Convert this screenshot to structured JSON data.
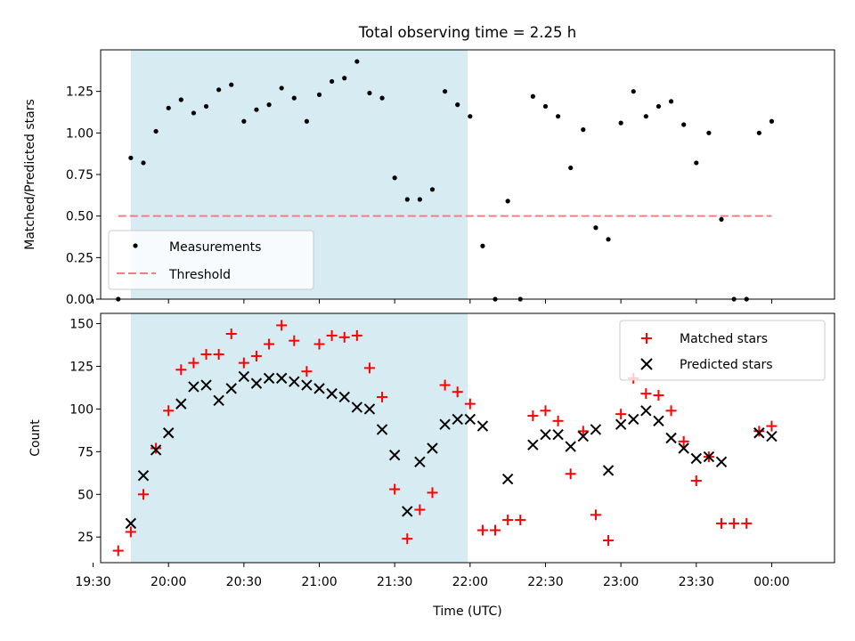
{
  "chart_data": [
    {
      "type": "scatter",
      "title": "Total observing time = 2.25 h",
      "xlabel": "",
      "ylabel": "Matched/Predicted stars",
      "ylim": [
        0,
        1.5
      ],
      "xlim": [
        "19:33",
        "00:25"
      ],
      "x_ticks": [
        "19:30",
        "20:00",
        "20:30",
        "21:00",
        "21:30",
        "22:00",
        "22:30",
        "23:00",
        "23:30",
        "00:00"
      ],
      "y_ticks": [
        "0.00",
        "0.25",
        "0.50",
        "0.75",
        "1.00",
        "1.25"
      ],
      "shaded_interval": [
        "19:45",
        "21:59"
      ],
      "legend_position": "lower left",
      "grid": false,
      "series": [
        {
          "name": "Measurements",
          "marker": "dot",
          "color": "#000000",
          "x": [
            "19:40",
            "19:45",
            "19:50",
            "19:55",
            "20:00",
            "20:05",
            "20:10",
            "20:15",
            "20:20",
            "20:25",
            "20:30",
            "20:35",
            "20:40",
            "20:45",
            "20:50",
            "20:55",
            "21:00",
            "21:05",
            "21:10",
            "21:15",
            "21:20",
            "21:25",
            "21:30",
            "21:35",
            "21:40",
            "21:45",
            "21:50",
            "21:55",
            "22:00",
            "22:05",
            "22:10",
            "22:15",
            "22:20",
            "22:25",
            "22:30",
            "22:35",
            "22:40",
            "22:45",
            "22:50",
            "22:55",
            "23:00",
            "23:05",
            "23:10",
            "23:15",
            "23:20",
            "23:25",
            "23:30",
            "23:35",
            "23:40",
            "23:45",
            "23:50",
            "23:55",
            "00:00"
          ],
          "y": [
            0.0,
            0.85,
            0.82,
            1.01,
            1.15,
            1.2,
            1.12,
            1.16,
            1.26,
            1.29,
            1.07,
            1.14,
            1.17,
            1.27,
            1.21,
            1.07,
            1.23,
            1.31,
            1.33,
            1.43,
            1.24,
            1.21,
            0.73,
            0.6,
            0.6,
            0.66,
            1.25,
            1.17,
            1.1,
            0.32,
            0.0,
            0.59,
            0.0,
            1.22,
            1.16,
            1.1,
            0.79,
            1.02,
            0.43,
            0.36,
            1.06,
            1.25,
            1.1,
            1.16,
            1.19,
            1.05,
            0.82,
            1.0,
            0.48,
            0.0,
            0.0,
            1.0,
            1.07
          ]
        },
        {
          "name": "Threshold",
          "style": "dashed-line",
          "color": "#f08080",
          "x": [
            "19:40",
            "00:00"
          ],
          "y": [
            0.5,
            0.5
          ]
        }
      ]
    },
    {
      "type": "scatter",
      "title": "",
      "xlabel": "Time (UTC)",
      "ylabel": "Count",
      "ylim": [
        10,
        156
      ],
      "xlim": [
        "19:33",
        "00:25"
      ],
      "x_ticks": [
        "19:30",
        "20:00",
        "20:30",
        "21:00",
        "21:30",
        "22:00",
        "22:30",
        "23:00",
        "23:30",
        "00:00"
      ],
      "y_ticks": [
        "25",
        "50",
        "75",
        "100",
        "125",
        "150"
      ],
      "shaded_interval": [
        "19:45",
        "21:59"
      ],
      "legend_position": "upper right",
      "grid": false,
      "series": [
        {
          "name": "Matched stars",
          "marker": "plus",
          "color": "#ff0000",
          "x": [
            "19:40",
            "19:45",
            "19:50",
            "19:55",
            "20:00",
            "20:05",
            "20:10",
            "20:15",
            "20:20",
            "20:25",
            "20:30",
            "20:35",
            "20:40",
            "20:45",
            "20:50",
            "20:55",
            "21:00",
            "21:05",
            "21:10",
            "21:15",
            "21:20",
            "21:25",
            "21:30",
            "21:35",
            "21:40",
            "21:45",
            "21:50",
            "21:55",
            "22:00",
            "22:05",
            "22:10",
            "22:15",
            "22:20",
            "22:25",
            "22:30",
            "22:35",
            "22:40",
            "22:45",
            "22:50",
            "22:55",
            "23:00",
            "23:05",
            "23:10",
            "23:15",
            "23:20",
            "23:25",
            "23:30",
            "23:35",
            "23:40",
            "23:45",
            "23:50",
            "23:55",
            "00:00"
          ],
          "y": [
            17,
            28,
            50,
            77,
            99,
            123,
            127,
            132,
            132,
            144,
            127,
            131,
            138,
            149,
            140,
            122,
            138,
            143,
            142,
            143,
            124,
            107,
            53,
            24,
            41,
            51,
            114,
            110,
            103,
            29,
            29,
            35,
            35,
            96,
            99,
            93,
            62,
            87,
            38,
            23,
            97,
            118,
            109,
            108,
            99,
            81,
            58,
            72,
            33,
            33,
            33,
            87,
            90
          ]
        },
        {
          "name": "Predicted stars",
          "marker": "x",
          "color": "#000000",
          "x": [
            "19:45",
            "19:50",
            "19:55",
            "20:00",
            "20:05",
            "20:10",
            "20:15",
            "20:20",
            "20:25",
            "20:30",
            "20:35",
            "20:40",
            "20:45",
            "20:50",
            "20:55",
            "21:00",
            "21:05",
            "21:10",
            "21:15",
            "21:20",
            "21:25",
            "21:30",
            "21:35",
            "21:40",
            "21:45",
            "21:50",
            "21:55",
            "22:00",
            "22:05",
            "22:15",
            "22:25",
            "22:30",
            "22:35",
            "22:40",
            "22:45",
            "22:50",
            "22:55",
            "23:00",
            "23:05",
            "23:10",
            "23:15",
            "23:20",
            "23:25",
            "23:30",
            "23:35",
            "23:40",
            "23:55",
            "00:00"
          ],
          "y": [
            33,
            61,
            76,
            86,
            103,
            113,
            114,
            105,
            112,
            119,
            115,
            118,
            118,
            116,
            114,
            112,
            109,
            107,
            101,
            100,
            88,
            73,
            40,
            69,
            77,
            91,
            94,
            94,
            90,
            59,
            79,
            85,
            85,
            78,
            84,
            88,
            64,
            91,
            94,
            99,
            93,
            83,
            77,
            71,
            72,
            69,
            86,
            84
          ]
        }
      ]
    }
  ]
}
